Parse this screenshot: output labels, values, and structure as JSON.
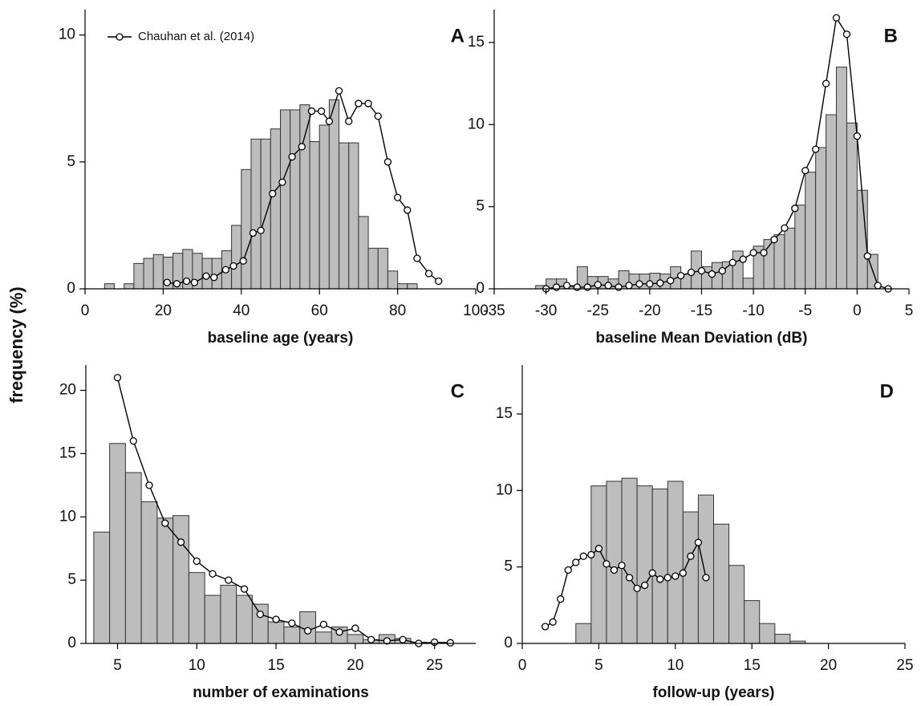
{
  "ylabel": "frequency (%)",
  "chart_data": [
    {
      "type": "histogram",
      "label": "A",
      "xlabel": "baseline age (years)",
      "bins": [
        5,
        7.5,
        10,
        12.5,
        15,
        17.5,
        20,
        22.5,
        25,
        27.5,
        30,
        32.5,
        35,
        37.5,
        40,
        42.5,
        45,
        47.5,
        50,
        52.5,
        55,
        57.5,
        60,
        62.5,
        65,
        67.5,
        70,
        72.5,
        75,
        77.5,
        80,
        82.5,
        85
      ],
      "values": [
        0.2,
        0,
        0.2,
        1.0,
        1.2,
        1.35,
        1.25,
        1.4,
        1.55,
        1.4,
        1.2,
        1.2,
        1.5,
        2.5,
        4.7,
        5.9,
        5.9,
        6.3,
        7.05,
        7.05,
        7.25,
        5.8,
        6.45,
        7.45,
        5.75,
        5.75,
        2.85,
        1.6,
        1.6,
        0.7,
        0.2,
        0.2
      ],
      "color": "#bdbdbd",
      "series": [
        {
          "name": "Chauhan et al. (2014)",
          "color": "#000000",
          "x": [
            21,
            23.5,
            26,
            28,
            31,
            33,
            36,
            38,
            40.5,
            43,
            45,
            48,
            50.5,
            53,
            55.5,
            58,
            60.5,
            62.5,
            65,
            67.5,
            70,
            72.5,
            75,
            77.5,
            80,
            82.5,
            85,
            88,
            90.5
          ],
          "values": [
            0.25,
            0.2,
            0.3,
            0.25,
            0.5,
            0.45,
            0.75,
            0.9,
            1.1,
            2.2,
            2.3,
            3.75,
            4.2,
            5.2,
            5.6,
            7.0,
            7.0,
            6.6,
            7.8,
            6.6,
            7.3,
            7.3,
            6.8,
            5.0,
            3.6,
            3.1,
            1.2,
            0.6,
            0.3
          ]
        }
      ],
      "xlim": [
        0,
        100
      ],
      "xticks": [
        0,
        20,
        40,
        60,
        80,
        100
      ],
      "ylim": [
        0,
        11
      ],
      "yticks": [
        0,
        5,
        10
      ]
    },
    {
      "type": "histogram",
      "label": "B",
      "xlabel": "baseline Mean Deviation (dB)",
      "bins": [
        -31,
        -30,
        -29,
        -28,
        -27,
        -26,
        -25,
        -24,
        -23,
        -22,
        -21,
        -20,
        -19,
        -18,
        -17,
        -16,
        -15,
        -14,
        -13,
        -12,
        -11,
        -10,
        -9,
        -8,
        -7,
        -6,
        -5,
        -4,
        -3,
        -2,
        -1,
        0,
        1,
        2
      ],
      "values": [
        0.2,
        0.6,
        0.6,
        0.2,
        1.35,
        0.75,
        0.75,
        0.6,
        1.1,
        0.9,
        0.9,
        0.95,
        0.9,
        1.35,
        0.9,
        2.3,
        1.35,
        1.6,
        1.65,
        2.3,
        0.65,
        2.6,
        3.0,
        3.3,
        3.7,
        5.1,
        7.1,
        8.6,
        10.6,
        13.5,
        10.1,
        6.0,
        2.1
      ],
      "color": "#bdbdbd",
      "series": [
        {
          "color": "#000000",
          "x": [
            -30,
            -29,
            -28,
            -27,
            -26,
            -25,
            -24,
            -23,
            -22,
            -21,
            -20,
            -19,
            -18,
            -17,
            -16,
            -15,
            -14,
            -13,
            -12,
            -11,
            -10,
            -9,
            -8,
            -7,
            -6,
            -5,
            -4,
            -3,
            -2,
            -1,
            0,
            1,
            2,
            3
          ],
          "values": [
            0,
            0.1,
            0.2,
            0.1,
            0.1,
            0.25,
            0.2,
            0.1,
            0.2,
            0.3,
            0.3,
            0.35,
            0.5,
            0.8,
            1.0,
            1.1,
            0.9,
            1.1,
            1.6,
            1.8,
            2.2,
            2.2,
            3.0,
            3.7,
            4.9,
            7.2,
            8.5,
            12.5,
            16.5,
            15.5,
            9.3,
            2.0,
            0.2,
            0
          ]
        }
      ],
      "xlim": [
        -35,
        5
      ],
      "xticks": [
        -35,
        -30,
        -25,
        -20,
        -15,
        -10,
        -5,
        0,
        5
      ],
      "ylim": [
        0,
        17
      ],
      "yticks": [
        0,
        5,
        10,
        15
      ]
    },
    {
      "type": "histogram",
      "label": "C",
      "xlabel": "number of examinations",
      "bins": [
        3.5,
        4.5,
        5.5,
        6.5,
        7.5,
        8.5,
        9.5,
        10.5,
        11.5,
        12.5,
        13.5,
        14.5,
        15.5,
        16.5,
        17.5,
        18.5,
        19.5,
        20.5,
        21.5,
        22.5,
        23.5,
        24.5
      ],
      "values": [
        8.8,
        15.8,
        13.5,
        11.2,
        9.9,
        10.1,
        5.6,
        3.8,
        4.6,
        3.8,
        3.1,
        1.7,
        1.3,
        2.5,
        0.9,
        1.3,
        0.7,
        0.3,
        0.7,
        0.4,
        0.1
      ],
      "color": "#bdbdbd",
      "series": [
        {
          "color": "#000000",
          "x": [
            5,
            6,
            7,
            8,
            9,
            10,
            11,
            12,
            13,
            14,
            15,
            16,
            17,
            18,
            19,
            20,
            21,
            22,
            23,
            24,
            25,
            26
          ],
          "values": [
            21,
            16,
            12.5,
            9.5,
            8,
            6.5,
            5.5,
            5.0,
            4.3,
            2.3,
            1.9,
            1.6,
            1.0,
            1.5,
            0.9,
            1.2,
            0.3,
            0.2,
            0.3,
            0,
            0.1,
            0.05
          ]
        }
      ],
      "xlim": [
        3,
        27.6
      ],
      "xticks": [
        5,
        10,
        15,
        20,
        25
      ],
      "ylim": [
        0,
        22
      ],
      "yticks": [
        0,
        5,
        10,
        15,
        20
      ]
    },
    {
      "type": "histogram",
      "label": "D",
      "xlabel": "follow-up (years)",
      "bins": [
        3.5,
        4.5,
        5.5,
        6.5,
        7.5,
        8.5,
        9.5,
        10.5,
        11.5,
        12.5,
        13.5,
        14.5,
        15.5,
        16.5,
        17.5,
        18.5
      ],
      "values": [
        1.3,
        10.3,
        10.6,
        10.8,
        10.3,
        10.1,
        10.6,
        8.6,
        9.7,
        7.8,
        5.1,
        2.8,
        1.3,
        0.6,
        0.15
      ],
      "color": "#bdbdbd",
      "series": [
        {
          "color": "#000000",
          "x": [
            1.5,
            2,
            2.5,
            3,
            3.5,
            4,
            4.5,
            5,
            5.5,
            6,
            6.5,
            7,
            7.5,
            8,
            8.5,
            9,
            9.5,
            10,
            10.5,
            11,
            11.5,
            12
          ],
          "values": [
            1.1,
            1.4,
            2.9,
            4.8,
            5.3,
            5.7,
            5.8,
            6.2,
            5.2,
            4.8,
            5.1,
            4.3,
            3.6,
            3.8,
            4.6,
            4.2,
            4.3,
            4.4,
            4.6,
            5.7,
            6.6,
            4.3
          ]
        }
      ],
      "xlim": [
        0,
        25
      ],
      "xticks": [
        0,
        5,
        10,
        15,
        20,
        25
      ],
      "ylim": [
        0,
        18.2
      ],
      "yticks": [
        0,
        5,
        10,
        15
      ]
    }
  ]
}
